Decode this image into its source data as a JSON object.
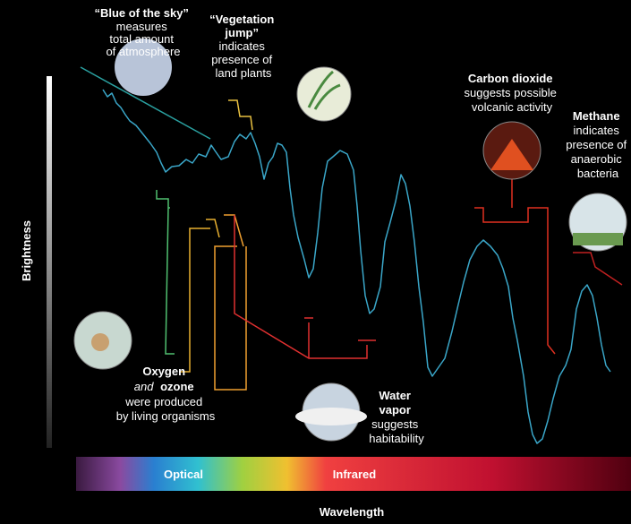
{
  "axes": {
    "y_label": "Brightness",
    "x_label": "Wavelength",
    "bands": [
      "Optical",
      "Infrared"
    ]
  },
  "annotations": [
    {
      "title": [
        "“Blue of the sky”"
      ],
      "body": [
        "measures",
        "total amount",
        "of atmosphere"
      ]
    },
    {
      "title": [
        "“Vegetation",
        "jump”"
      ],
      "body": [
        "indicates",
        "presence of",
        "land plants"
      ]
    },
    {
      "title": [
        "Carbon dioxide"
      ],
      "body": [
        "suggests possible",
        "volcanic activity"
      ]
    },
    {
      "title": [
        "Methane"
      ],
      "body": [
        "indicates",
        "presence of",
        "anaerobic",
        "bacteria"
      ]
    },
    {
      "title": [
        "Oxygen"
      ],
      "emphasis": "and",
      "title_cont": "ozone",
      "body": [
        "were produced",
        "by living organisms"
      ]
    },
    {
      "title": [
        "Water",
        "vapor"
      ],
      "body": [
        "suggests",
        "habitability"
      ]
    }
  ]
}
